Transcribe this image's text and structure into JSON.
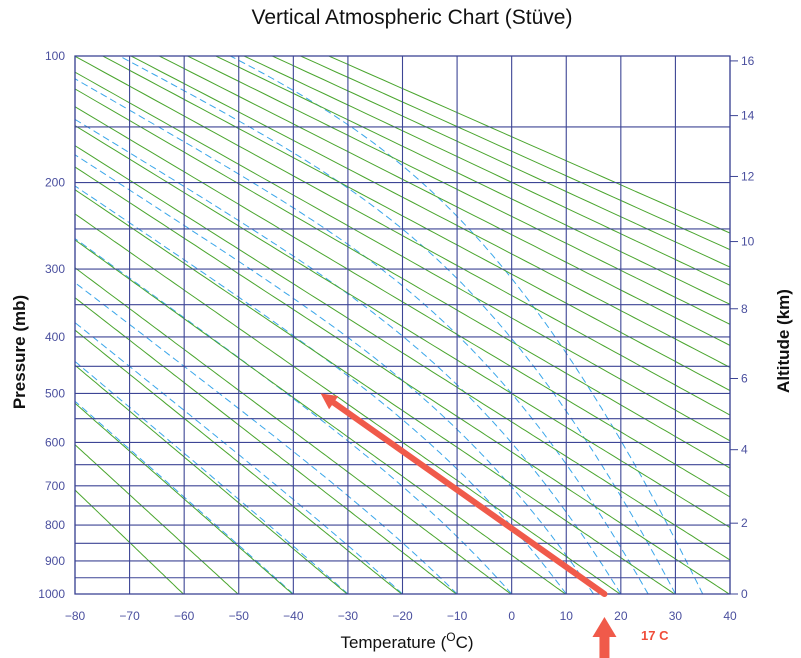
{
  "chart_data": {
    "type": "line",
    "title": "Vertical Atmospheric Chart (Stüve)",
    "xlabel": "Temperature (°C)",
    "xlabel_main": "Temperature (",
    "xlabel_sup": "O",
    "xlabel_tail": "C)",
    "ylabel": "Pressure (mb)",
    "y2label": "Altitude (km)",
    "xlim": [
      -80,
      40
    ],
    "x_ticks": [
      -80,
      -70,
      -60,
      -50,
      -40,
      -30,
      -20,
      -10,
      0,
      10,
      20,
      30,
      40
    ],
    "ylim": [
      100,
      1000
    ],
    "y_ticks": [
      100,
      200,
      300,
      400,
      500,
      600,
      700,
      800,
      900,
      1000
    ],
    "y_grid_extra": [
      150,
      250,
      350,
      450,
      550,
      650,
      750,
      850,
      950
    ],
    "y2_ticks": [
      0,
      2,
      4,
      6,
      8,
      10,
      12,
      14,
      16
    ],
    "y2_pressure": [
      1000,
      795,
      616,
      472,
      356,
      265,
      194,
      141,
      103
    ],
    "grid": true,
    "series": [
      {
        "kind": "dry_adiabats",
        "theta_K": [
          213,
          223,
          233,
          243,
          253,
          263,
          273,
          283,
          293,
          303,
          313,
          323,
          333,
          343,
          353,
          363,
          373,
          383,
          393,
          403,
          413,
          423,
          433,
          443,
          453,
          463
        ]
      },
      {
        "kind": "moist_adiabats",
        "surface_temp_C": [
          -40,
          -30,
          -20,
          -10,
          0,
          10,
          15,
          20,
          25,
          30,
          35
        ]
      }
    ],
    "annotations": [
      {
        "text": "17 C",
        "kind": "temperature_marker",
        "temp_C": 17
      },
      {
        "text": "",
        "kind": "arrow",
        "from": {
          "temp_C": 17,
          "pressure_mb": 1000
        },
        "to": {
          "temp_C": -35,
          "pressure_mb": 500
        }
      }
    ],
    "colors": {
      "grid": "#3d4595",
      "dry_adiabat": "#4aa52e",
      "moist_adiabat": "#3aa6ea",
      "arrow": "#f05a4a",
      "tick_text": "#4a4f9e"
    }
  }
}
